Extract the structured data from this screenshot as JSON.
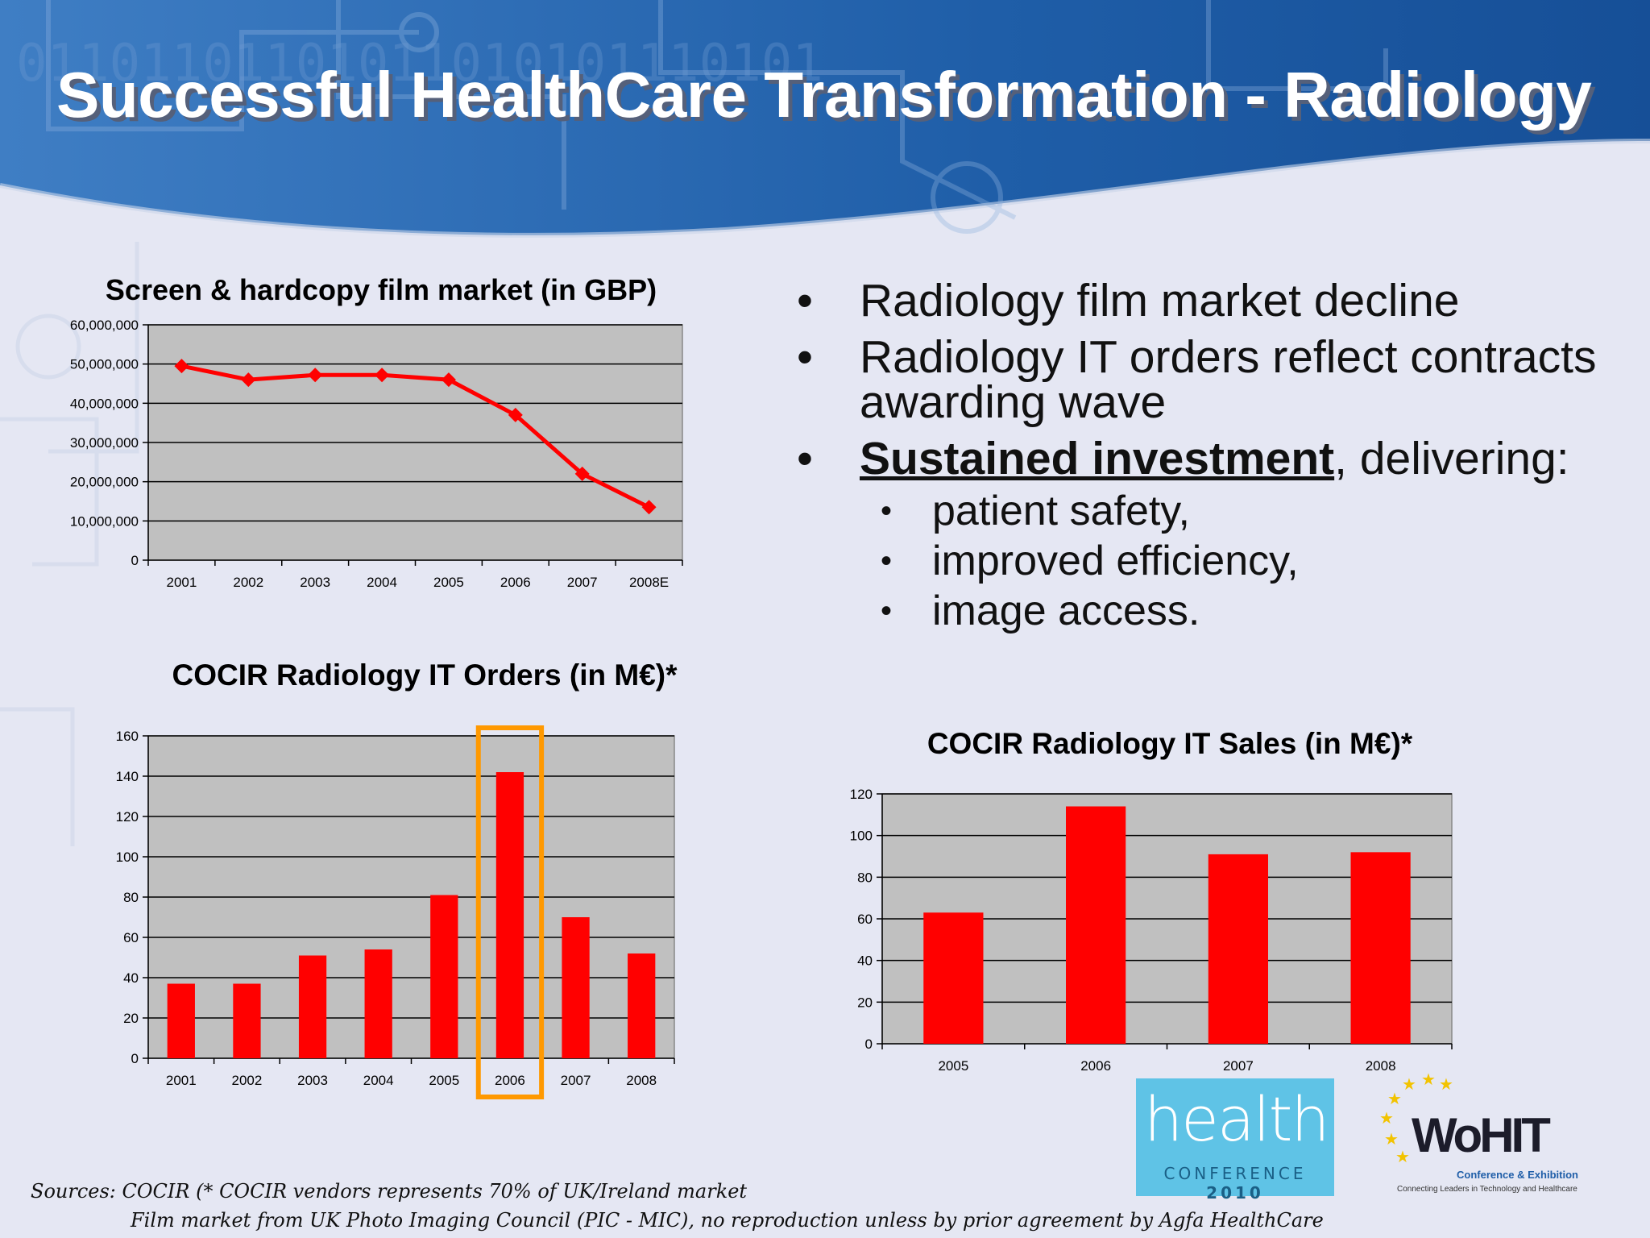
{
  "slide": {
    "title": "Successful HealthCare Transformation - Radiology",
    "bullets": [
      {
        "text": "Radiology film market decline"
      },
      {
        "text": "Radiology IT orders reflect contracts awarding wave"
      },
      {
        "emphasis": "Sustained investment",
        "text": ", delivering:"
      }
    ],
    "sub_bullets": [
      "patient safety,",
      "improved efficiency,",
      "image access."
    ],
    "sources_line1": "Sources: COCIR (* COCIR vendors represents 70% of UK/Ireland market",
    "sources_line2": "Film market from UK Photo Imaging Council (PIC - MIC), no reproduction unless by prior agreement by Agfa HealthCare",
    "logos": {
      "health": {
        "word": "health",
        "sub": "CONFERENCE",
        "year": "2010"
      },
      "wohit": {
        "word": "WoHIT",
        "tagline": "Conference & Exhibition",
        "sub": "Connecting Leaders in Technology and Healthcare"
      }
    },
    "colors": {
      "series": "#ff0000",
      "highlight": "#ff9900",
      "plot_bg": "#c0c0c0",
      "title_band": "#1e5aa3"
    }
  },
  "chart_data": [
    {
      "type": "line",
      "title": "Screen & hardcopy film market (in GBP)",
      "categories": [
        "2001",
        "2002",
        "2003",
        "2004",
        "2005",
        "2006",
        "2007",
        "2008E"
      ],
      "values": [
        49500000,
        46000000,
        47200000,
        47200000,
        46000000,
        37000000,
        22000000,
        13500000
      ],
      "ylim": [
        0,
        60000000
      ],
      "yticks": [
        0,
        10000000,
        20000000,
        30000000,
        40000000,
        50000000,
        60000000
      ],
      "ytick_labels": [
        "0",
        "10,000,000",
        "20,000,000",
        "30,000,000",
        "40,000,000",
        "50,000,000",
        "60,000,000"
      ],
      "xlabel": "",
      "ylabel": "",
      "grid": true,
      "legend": "none"
    },
    {
      "type": "bar",
      "title": "COCIR Radiology IT Orders (in M€)*",
      "categories": [
        "2001",
        "2002",
        "2003",
        "2004",
        "2005",
        "2006",
        "2007",
        "2008"
      ],
      "values": [
        37,
        37,
        51,
        54,
        81,
        142,
        70,
        52
      ],
      "ylim": [
        0,
        160
      ],
      "yticks": [
        0,
        20,
        40,
        60,
        80,
        100,
        120,
        140,
        160
      ],
      "ytick_labels": [
        "0",
        "20",
        "40",
        "60",
        "80",
        "100",
        "120",
        "140",
        "160"
      ],
      "highlight": "2006",
      "xlabel": "",
      "ylabel": "",
      "grid": true,
      "legend": "none"
    },
    {
      "type": "bar",
      "title": "COCIR Radiology IT Sales (in M€)*",
      "categories": [
        "2005",
        "2006",
        "2007",
        "2008"
      ],
      "values": [
        63,
        114,
        91,
        92
      ],
      "ylim": [
        0,
        120
      ],
      "yticks": [
        0,
        20,
        40,
        60,
        80,
        100,
        120
      ],
      "ytick_labels": [
        "0",
        "20",
        "40",
        "60",
        "80",
        "100",
        "120"
      ],
      "xlabel": "",
      "ylabel": "",
      "grid": true,
      "legend": "none"
    }
  ]
}
